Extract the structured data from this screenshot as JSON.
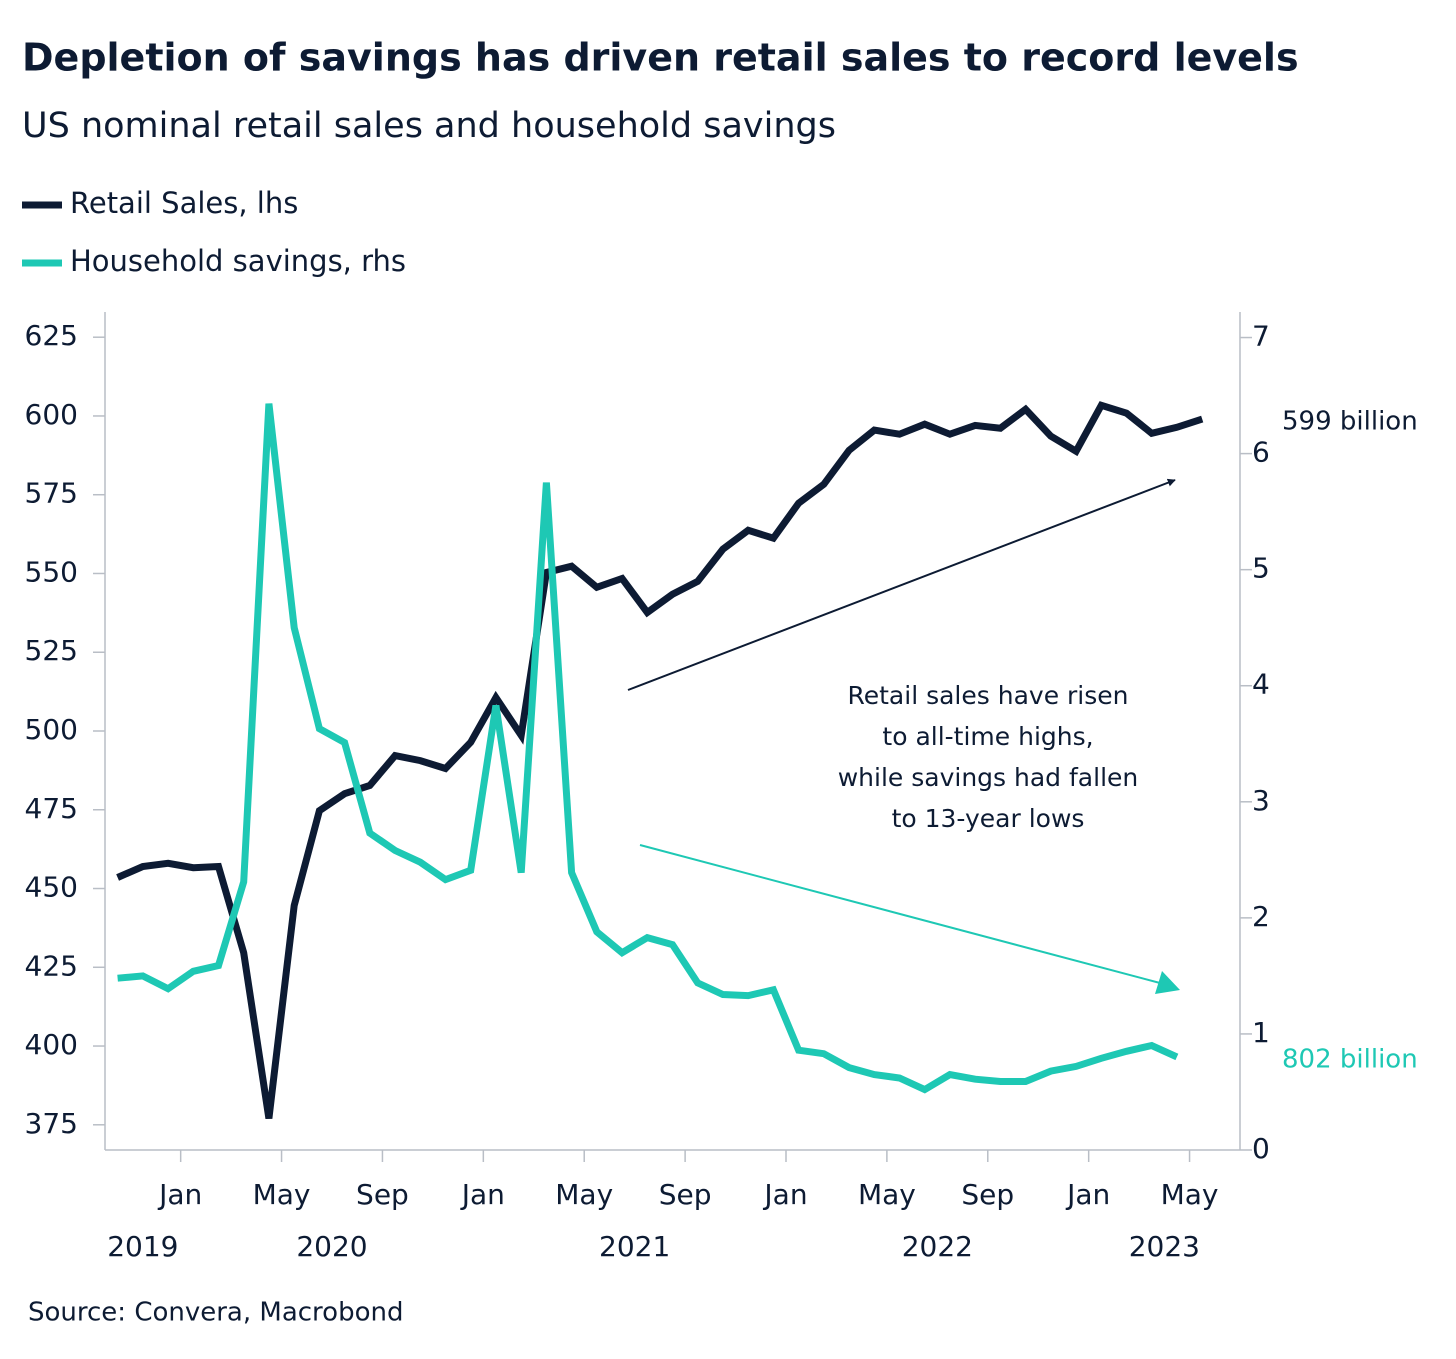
{
  "chart_data": {
    "type": "line",
    "title": "Depletion of savings has driven retail sales to record levels",
    "subtitle": "US nominal retail sales and household savings",
    "source": "Source: Convera, Macrobond",
    "annotation": [
      "Retail sales have risen",
      "to all-time highs,",
      "while savings had fallen",
      "to 13-year lows"
    ],
    "x": [
      "2019-10",
      "2019-11",
      "2019-12",
      "2020-01",
      "2020-02",
      "2020-03",
      "2020-04",
      "2020-05",
      "2020-06",
      "2020-07",
      "2020-08",
      "2020-09",
      "2020-10",
      "2020-11",
      "2020-12",
      "2021-01",
      "2021-02",
      "2021-03",
      "2021-04",
      "2021-05",
      "2021-06",
      "2021-07",
      "2021-08",
      "2021-09",
      "2021-10",
      "2021-11",
      "2021-12",
      "2022-01",
      "2022-02",
      "2022-03",
      "2022-04",
      "2022-05",
      "2022-06",
      "2022-07",
      "2022-08",
      "2022-09",
      "2022-10",
      "2022-11",
      "2022-12",
      "2023-01",
      "2023-02",
      "2023-03",
      "2023-04",
      "2023-05"
    ],
    "xlim": [
      "2019-10",
      "2023-07"
    ],
    "xticks": [
      {
        "value": "2020-01",
        "label": "Jan"
      },
      {
        "value": "2020-05",
        "label": "May"
      },
      {
        "value": "2020-09",
        "label": "Sep"
      },
      {
        "value": "2021-01",
        "label": "Jan"
      },
      {
        "value": "2021-05",
        "label": "May"
      },
      {
        "value": "2021-09",
        "label": "Sep"
      },
      {
        "value": "2022-01",
        "label": "Jan"
      },
      {
        "value": "2022-05",
        "label": "May"
      },
      {
        "value": "2022-09",
        "label": "Sep"
      },
      {
        "value": "2023-01",
        "label": "Jan"
      },
      {
        "value": "2023-05",
        "label": "May"
      }
    ],
    "x_year_labels": [
      "2019",
      "2020",
      "2021",
      "2022",
      "2023"
    ],
    "ylim": [
      367,
      633
    ],
    "yticks": [
      375,
      400,
      425,
      450,
      475,
      500,
      525,
      550,
      575,
      600,
      625
    ],
    "y2lim": [
      0,
      7.22
    ],
    "y2ticks": [
      0,
      1,
      2,
      3,
      4,
      5,
      6,
      7
    ],
    "series": [
      {
        "name": "Retail Sales, lhs",
        "color": "#0d1b33",
        "axis": "y",
        "end_label": "599 billion",
        "values": [
          453.5,
          457,
          458,
          456.6,
          457,
          429.6,
          377,
          444.6,
          474.7,
          480.1,
          482.7,
          492.2,
          490.6,
          488.1,
          496.4,
          510.6,
          498.6,
          550.3,
          552.3,
          545.6,
          548.4,
          537.6,
          543.4,
          547.5,
          557.7,
          563.7,
          561.2,
          572.3,
          578.3,
          589.1,
          595.5,
          594.2,
          597.4,
          594.2,
          597,
          596.1,
          602.1,
          593.6,
          588.8,
          603.4,
          600.9,
          594.5,
          596.4,
          599
        ]
      },
      {
        "name": "Household savings, rhs",
        "color": "#1ec8b4",
        "axis": "y2",
        "end_label": "802 billion",
        "values": [
          1.48,
          1.5,
          1.39,
          1.54,
          1.59,
          2.31,
          6.43,
          4.5,
          3.63,
          3.51,
          2.73,
          2.58,
          2.48,
          2.33,
          2.41,
          3.83,
          2.39,
          5.75,
          2.39,
          1.88,
          1.7,
          1.83,
          1.77,
          1.44,
          1.34,
          1.33,
          1.38,
          0.86,
          0.83,
          0.71,
          0.65,
          0.62,
          0.52,
          0.65,
          0.61,
          0.59,
          0.59,
          0.68,
          0.72,
          0.79,
          0.85,
          0.9,
          0.802,
          null
        ]
      }
    ]
  }
}
